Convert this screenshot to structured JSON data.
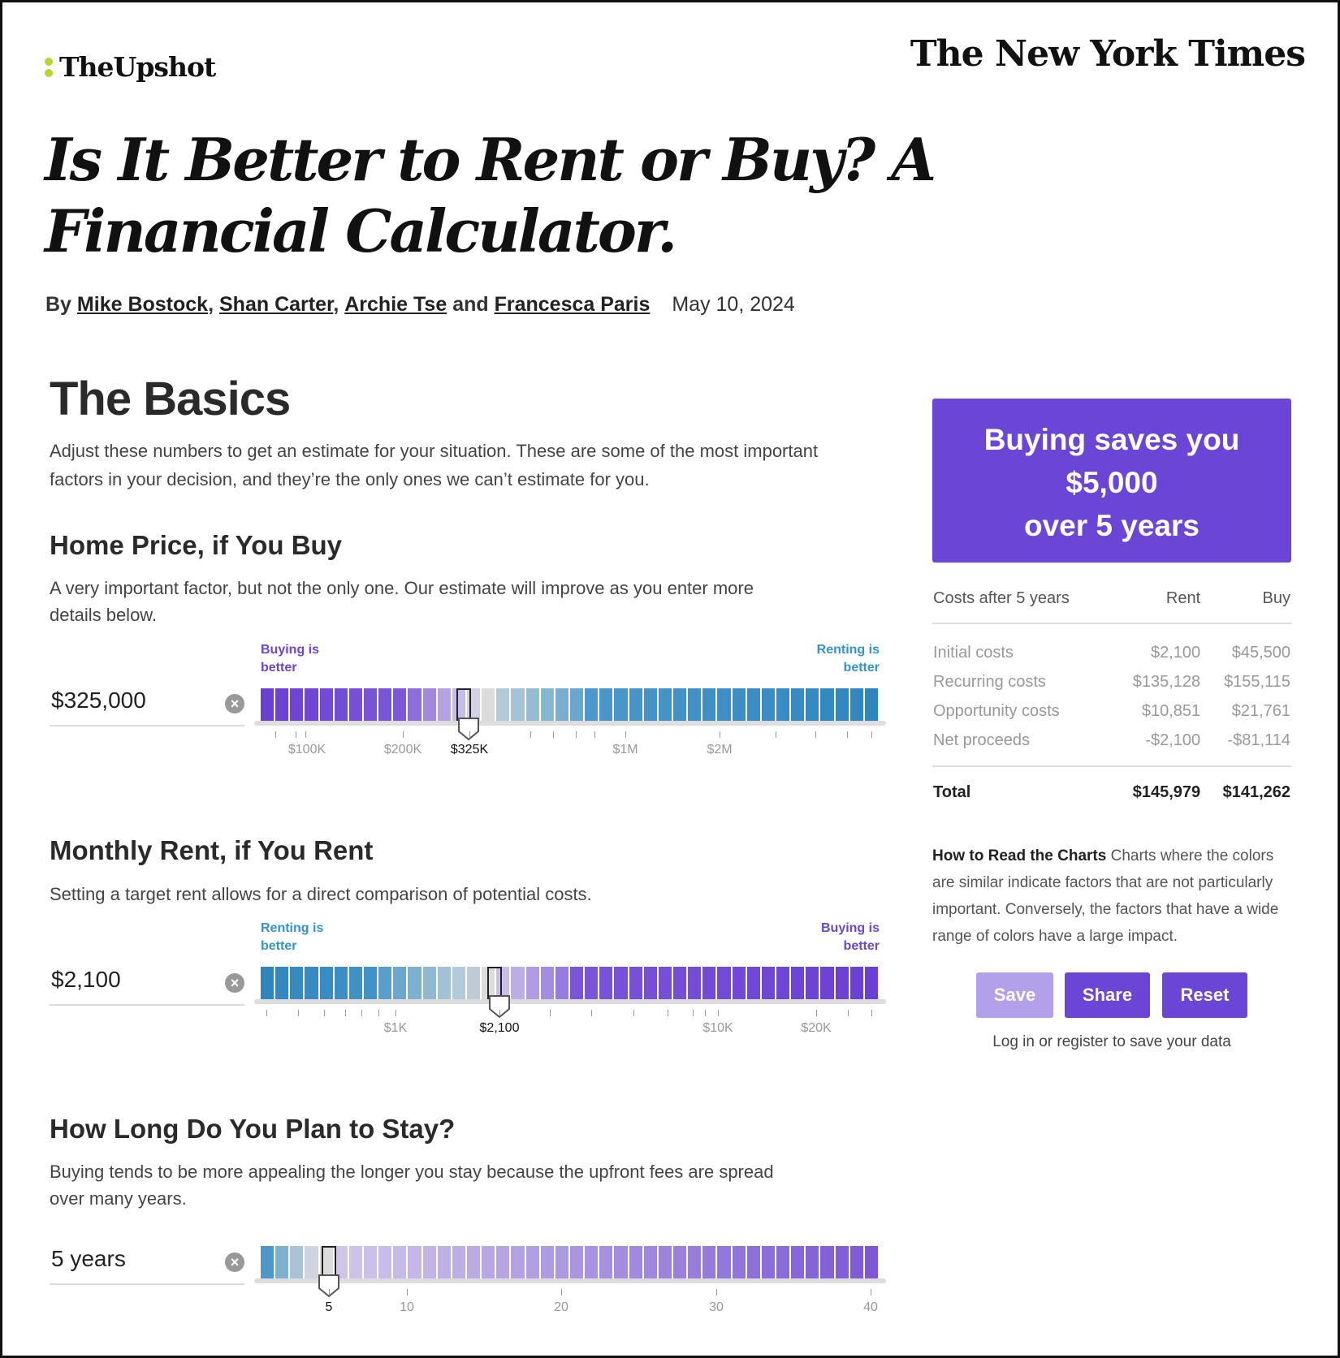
{
  "header": {
    "brand": "TheUpshot",
    "publisher": "The New York Times"
  },
  "article": {
    "headline": "Is It Better to Rent or Buy? A Financial Calculator.",
    "by": "By",
    "authors": [
      "Mike Bostock",
      "Shan Carter",
      "Archie Tse",
      "Francesca Paris"
    ],
    "sep_comma": ",",
    "sep_and": "and",
    "date": "May 10, 2024"
  },
  "basics": {
    "title": "The Basics",
    "intro": "Adjust these numbers to get an estimate for your situation. These are some of the most important factors in your decision, and they’re the only ones we can’t estimate for you."
  },
  "home_price": {
    "title": "Home Price, if You Buy",
    "desc": "A very important factor, but not the only one. Our estimate will improve as you enter more details below.",
    "value": "$325,000",
    "left_label": "Buying is better",
    "right_label": "Renting is better",
    "ticks": [
      "$100K",
      "$200K",
      "$325K",
      "$1M",
      "$2M"
    ],
    "current_tick": "$325K"
  },
  "rent": {
    "title": "Monthly Rent, if You Rent",
    "desc": "Setting a target rent allows for a direct comparison of potential costs.",
    "value": "$2,100",
    "left_label": "Renting is better",
    "right_label": "Buying is better",
    "ticks": [
      "$1K",
      "$2,100",
      "$10K",
      "$20K"
    ],
    "current_tick": "$2,100"
  },
  "stay": {
    "title": "How Long Do You Plan to Stay?",
    "desc": "Buying tends to be more appealing the longer you stay because the upfront fees are spread over many years.",
    "value": "5 years",
    "ticks": [
      "5",
      "10",
      "20",
      "30",
      "40"
    ],
    "current_tick": "5"
  },
  "result": {
    "line1": "Buying saves you",
    "line2": "$5,000",
    "line3": "over 5 years"
  },
  "costs": {
    "headers": [
      "Costs after 5 years",
      "Rent",
      "Buy"
    ],
    "rows": [
      [
        "Initial costs",
        "$2,100",
        "$45,500"
      ],
      [
        "Recurring costs",
        "$135,128",
        "$155,115"
      ],
      [
        "Opportunity costs",
        "$10,851",
        "$21,761"
      ],
      [
        "Net proceeds",
        "-$2,100",
        "-$81,114"
      ]
    ],
    "total": [
      "Total",
      "$145,979",
      "$141,262"
    ]
  },
  "howto": {
    "title": "How to Read the Charts",
    "text": "Charts where the colors are similar indicate factors that are not particularly important. Conversely, the factors that have a wide range of colors have a large impact."
  },
  "buttons": {
    "save": "Save",
    "share": "Share",
    "reset": "Reset"
  },
  "login_note": "Log in or register to save your data",
  "colors": {
    "purple": "#6b46d6",
    "blue": "#3493cf",
    "save_disabled": "#b3a0ea"
  }
}
